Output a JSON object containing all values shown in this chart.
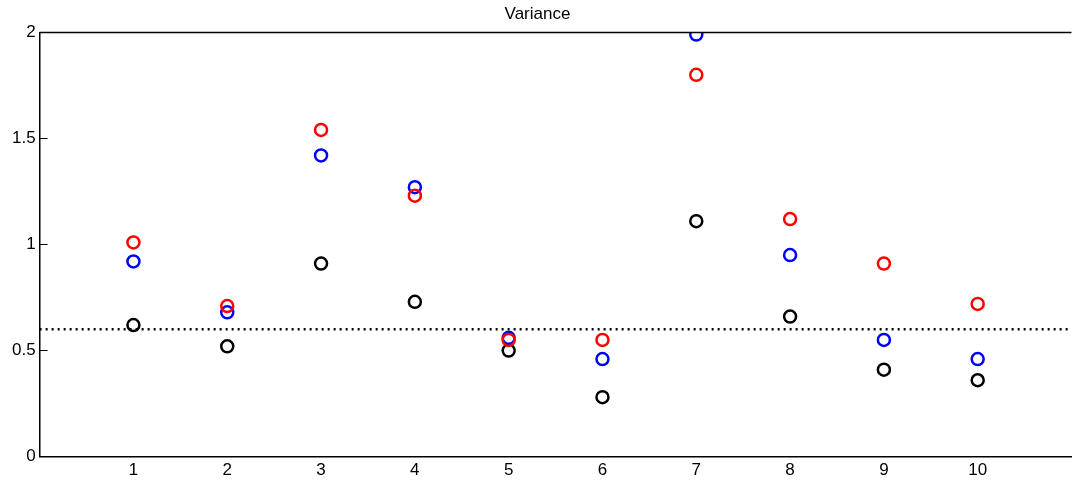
{
  "chart_data": {
    "type": "scatter",
    "title": "Variance",
    "x": [
      1,
      2,
      3,
      4,
      5,
      6,
      7,
      8,
      9,
      10
    ],
    "series": [
      {
        "color": "#ff0000",
        "values": [
          1.01,
          0.71,
          1.54,
          1.23,
          0.55,
          0.55,
          1.8,
          1.12,
          0.91,
          0.72
        ]
      },
      {
        "color": "#0000ff",
        "values": [
          0.92,
          0.68,
          1.42,
          1.27,
          0.56,
          0.46,
          1.99,
          0.95,
          0.55,
          0.46
        ]
      },
      {
        "color": "#000000",
        "values": [
          0.62,
          0.52,
          0.91,
          0.73,
          0.5,
          0.28,
          1.11,
          0.66,
          0.41,
          0.36
        ]
      }
    ],
    "xlim": [
      0,
      11
    ],
    "xticks": [
      1,
      2,
      3,
      4,
      5,
      6,
      7,
      8,
      9,
      10
    ],
    "ylim": [
      0,
      2
    ],
    "yticks": [
      0,
      0.5,
      1,
      1.5,
      2
    ],
    "ref_lines": [
      {
        "axis": "y",
        "value": 0.6,
        "line_style": "dotted",
        "color": "#000000"
      }
    ],
    "marker": "circle",
    "grid": false,
    "legend": false
  }
}
